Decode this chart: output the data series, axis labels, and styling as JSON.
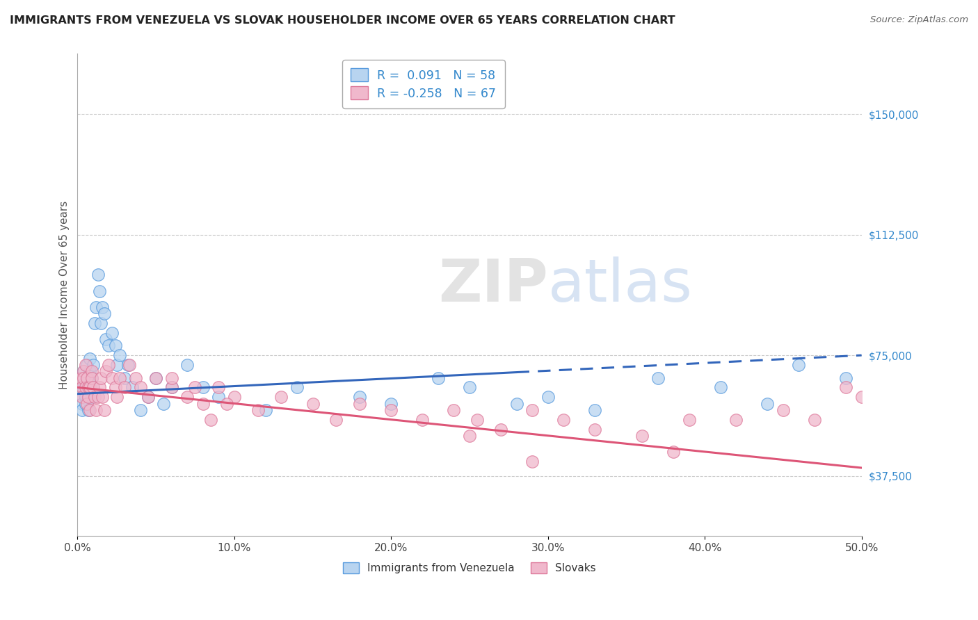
{
  "title": "IMMIGRANTS FROM VENEZUELA VS SLOVAK HOUSEHOLDER INCOME OVER 65 YEARS CORRELATION CHART",
  "source_text": "Source: ZipAtlas.com",
  "ylabel": "Householder Income Over 65 years",
  "xlim": [
    0.0,
    0.5
  ],
  "ylim": [
    18750,
    168750
  ],
  "xtick_labels": [
    "0.0%",
    "10.0%",
    "20.0%",
    "30.0%",
    "40.0%",
    "50.0%"
  ],
  "xtick_values": [
    0.0,
    0.1,
    0.2,
    0.3,
    0.4,
    0.5
  ],
  "ytick_labels": [
    "$37,500",
    "$75,000",
    "$112,500",
    "$150,000"
  ],
  "ytick_values": [
    37500,
    75000,
    112500,
    150000
  ],
  "watermark_zip": "ZIP",
  "watermark_atlas": "atlas",
  "legend_line1": "R =  0.091   N = 58",
  "legend_line2": "R = -0.258   N = 67",
  "color_blue_fill": "#b8d4f0",
  "color_pink_fill": "#f0b8cc",
  "color_blue_edge": "#5599dd",
  "color_pink_edge": "#dd7799",
  "color_blue_line": "#3366bb",
  "color_pink_line": "#dd5577",
  "color_blue_text": "#3388cc",
  "label_blue": "Immigrants from Venezuela",
  "label_pink": "Slovaks",
  "blue_x": [
    0.002,
    0.003,
    0.003,
    0.004,
    0.004,
    0.005,
    0.005,
    0.005,
    0.006,
    0.006,
    0.007,
    0.007,
    0.007,
    0.008,
    0.008,
    0.008,
    0.009,
    0.009,
    0.01,
    0.01,
    0.011,
    0.012,
    0.013,
    0.014,
    0.015,
    0.016,
    0.017,
    0.018,
    0.02,
    0.022,
    0.024,
    0.025,
    0.027,
    0.03,
    0.032,
    0.035,
    0.04,
    0.045,
    0.05,
    0.055,
    0.06,
    0.07,
    0.08,
    0.09,
    0.12,
    0.14,
    0.18,
    0.2,
    0.23,
    0.25,
    0.28,
    0.3,
    0.33,
    0.37,
    0.41,
    0.44,
    0.46,
    0.49
  ],
  "blue_y": [
    63000,
    60000,
    58000,
    65000,
    70000,
    62000,
    67000,
    60000,
    72000,
    65000,
    68000,
    62000,
    58000,
    74000,
    70000,
    65000,
    68000,
    62000,
    72000,
    65000,
    85000,
    90000,
    100000,
    95000,
    85000,
    90000,
    88000,
    80000,
    78000,
    82000,
    78000,
    72000,
    75000,
    68000,
    72000,
    65000,
    58000,
    62000,
    68000,
    60000,
    65000,
    72000,
    65000,
    62000,
    58000,
    65000,
    62000,
    60000,
    68000,
    65000,
    60000,
    62000,
    58000,
    68000,
    65000,
    60000,
    72000,
    68000
  ],
  "pink_x": [
    0.002,
    0.003,
    0.003,
    0.004,
    0.004,
    0.005,
    0.005,
    0.006,
    0.006,
    0.007,
    0.007,
    0.008,
    0.008,
    0.009,
    0.009,
    0.01,
    0.011,
    0.012,
    0.013,
    0.014,
    0.015,
    0.016,
    0.017,
    0.018,
    0.02,
    0.022,
    0.024,
    0.025,
    0.027,
    0.03,
    0.033,
    0.037,
    0.04,
    0.045,
    0.05,
    0.06,
    0.07,
    0.08,
    0.09,
    0.1,
    0.115,
    0.13,
    0.15,
    0.165,
    0.18,
    0.2,
    0.22,
    0.24,
    0.255,
    0.27,
    0.29,
    0.31,
    0.33,
    0.36,
    0.39,
    0.42,
    0.45,
    0.47,
    0.49,
    0.5,
    0.38,
    0.25,
    0.29,
    0.06,
    0.075,
    0.085,
    0.095
  ],
  "pink_y": [
    68000,
    65000,
    62000,
    70000,
    68000,
    72000,
    65000,
    60000,
    68000,
    65000,
    62000,
    58000,
    65000,
    70000,
    68000,
    65000,
    62000,
    58000,
    62000,
    65000,
    68000,
    62000,
    58000,
    70000,
    72000,
    68000,
    65000,
    62000,
    68000,
    65000,
    72000,
    68000,
    65000,
    62000,
    68000,
    65000,
    62000,
    60000,
    65000,
    62000,
    58000,
    62000,
    60000,
    55000,
    60000,
    58000,
    55000,
    58000,
    55000,
    52000,
    58000,
    55000,
    52000,
    50000,
    55000,
    55000,
    58000,
    55000,
    65000,
    62000,
    45000,
    50000,
    42000,
    68000,
    65000,
    55000,
    60000
  ]
}
